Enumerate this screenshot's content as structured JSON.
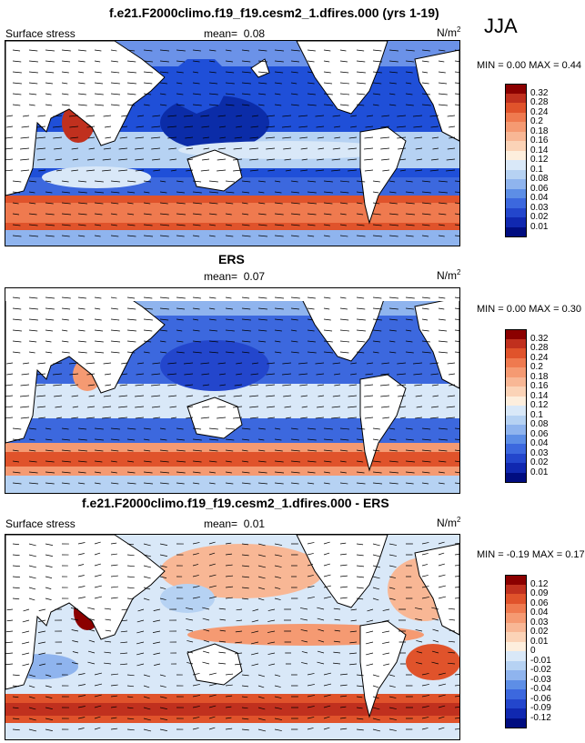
{
  "season": "JJA",
  "panels": [
    {
      "id": "model",
      "title": "f.e21.F2000climo.f19_f19.cesm2_1.dfires.000 (yrs 1-19)",
      "left_label": "Surface stress",
      "mean_label": "mean=",
      "mean_value": "0.08",
      "units": "N/m",
      "units_sup": "2",
      "min_label": "MIN =",
      "min_value": "0.00",
      "max_label": "MAX =",
      "max_value": "0.44",
      "colorbar_ticks": [
        "0.32",
        "0.28",
        "0.24",
        "0.2",
        "0.18",
        "0.16",
        "0.14",
        "0.12",
        "0.1",
        "0.08",
        "0.06",
        "0.04",
        "0.03",
        "0.02",
        "0.01"
      ],
      "colorbar_colors": [
        "#8b0000",
        "#c0301e",
        "#e0532b",
        "#ef7a4f",
        "#f59a72",
        "#f8b795",
        "#fbd3b7",
        "#fdeedd",
        "#d9e8f8",
        "#b6d2f3",
        "#8fb4ee",
        "#5d8ee6",
        "#3c68de",
        "#2346cc",
        "#1028b0",
        "#000d80"
      ]
    },
    {
      "id": "obs",
      "title": "ERS",
      "left_label": "Surface stress",
      "mean_label": "mean=",
      "mean_value": "0.07",
      "units": "N/m",
      "units_sup": "2",
      "min_label": "MIN =",
      "min_value": "0.00",
      "max_label": "MAX =",
      "max_value": "0.30",
      "colorbar_ticks": [
        "0.32",
        "0.28",
        "0.24",
        "0.2",
        "0.18",
        "0.16",
        "0.14",
        "0.12",
        "0.1",
        "0.08",
        "0.06",
        "0.04",
        "0.03",
        "0.02",
        "0.01"
      ],
      "colorbar_colors": [
        "#8b0000",
        "#c0301e",
        "#e0532b",
        "#ef7a4f",
        "#f59a72",
        "#f8b795",
        "#fbd3b7",
        "#fdeedd",
        "#d9e8f8",
        "#b6d2f3",
        "#8fb4ee",
        "#5d8ee6",
        "#3c68de",
        "#2346cc",
        "#1028b0",
        "#000d80"
      ]
    },
    {
      "id": "diff",
      "title": "f.e21.F2000climo.f19_f19.cesm2_1.dfires.000 - ERS",
      "left_label": "Surface stress",
      "mean_label": "mean=",
      "mean_value": "0.01",
      "units": "N/m",
      "units_sup": "2",
      "min_label": "MIN =",
      "min_value": "-0.19",
      "max_label": "MAX =",
      "max_value": "0.17",
      "colorbar_ticks": [
        "0.12",
        "0.09",
        "0.06",
        "0.04",
        "0.03",
        "0.02",
        "0.01",
        "0",
        "-0.01",
        "-0.02",
        "-0.03",
        "-0.04",
        "-0.06",
        "-0.09",
        "-0.12"
      ],
      "colorbar_colors": [
        "#8b0000",
        "#c0301e",
        "#e0532b",
        "#ef7a4f",
        "#f59a72",
        "#f8b795",
        "#fbd3b7",
        "#fdeedd",
        "#d9e8f8",
        "#b6d2f3",
        "#8fb4ee",
        "#5d8ee6",
        "#3c68de",
        "#2346cc",
        "#1028b0",
        "#000d80"
      ]
    }
  ],
  "chart_data": [
    {
      "type": "heatmap",
      "title": "f.e21.F2000climo.f19_f19.cesm2_1.dfires.000 (yrs 1-19)",
      "variable": "Surface stress",
      "units": "N/m2",
      "mean": 0.08,
      "min": 0.0,
      "max": 0.44,
      "levels": [
        0.01,
        0.02,
        0.03,
        0.04,
        0.06,
        0.08,
        0.1,
        0.12,
        0.14,
        0.16,
        0.18,
        0.2,
        0.24,
        0.28,
        0.32
      ]
    },
    {
      "type": "heatmap",
      "title": "ERS",
      "variable": "Surface stress",
      "units": "N/m2",
      "mean": 0.07,
      "min": 0.0,
      "max": 0.3,
      "levels": [
        0.01,
        0.02,
        0.03,
        0.04,
        0.06,
        0.08,
        0.1,
        0.12,
        0.14,
        0.16,
        0.18,
        0.2,
        0.24,
        0.28,
        0.32
      ]
    },
    {
      "type": "heatmap",
      "title": "f.e21.F2000climo.f19_f19.cesm2_1.dfires.000 - ERS",
      "variable": "Surface stress",
      "units": "N/m2",
      "mean": 0.01,
      "min": -0.19,
      "max": 0.17,
      "levels": [
        -0.12,
        -0.09,
        -0.06,
        -0.04,
        -0.03,
        -0.02,
        -0.01,
        0,
        0.01,
        0.02,
        0.03,
        0.04,
        0.06,
        0.09,
        0.12
      ]
    }
  ]
}
